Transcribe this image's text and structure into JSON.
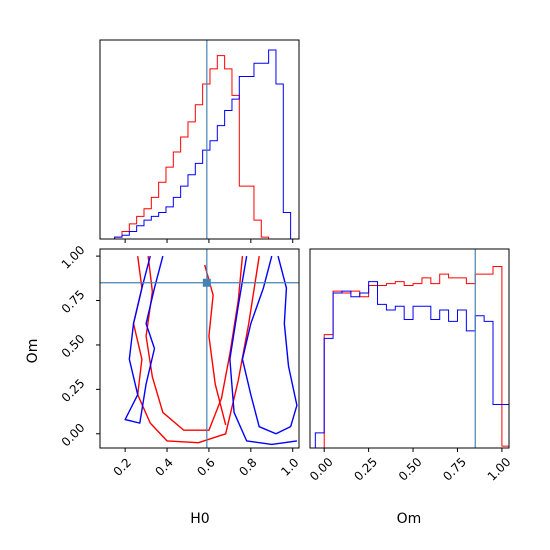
{
  "figure": {
    "colors": {
      "series_a": "#ff0000",
      "series_b": "#0000ff",
      "truth": "#4682b4",
      "axes": "#000000"
    }
  },
  "chart_data": [
    {
      "type": "histogram",
      "panel": "H0 marginal",
      "xlim": [
        0.08,
        1.03
      ],
      "ylim": [
        0,
        1.0
      ],
      "grid": false,
      "yticks_visible": false,
      "truth_value": 0.59,
      "bin_edges": [
        0.08,
        0.115,
        0.15,
        0.185,
        0.22,
        0.255,
        0.29,
        0.325,
        0.36,
        0.395,
        0.43,
        0.465,
        0.5,
        0.535,
        0.57,
        0.605,
        0.64,
        0.675,
        0.71,
        0.745,
        0.78,
        0.815,
        0.85,
        0.885,
        0.92,
        0.955,
        0.99,
        1.03
      ],
      "series": [
        {
          "values": [
            0,
            0,
            0.01,
            0.04,
            0.08,
            0.12,
            0.16,
            0.22,
            0.3,
            0.38,
            0.46,
            0.54,
            0.62,
            0.71,
            0.82,
            0.9,
            0.97,
            0.9,
            0.76,
            0.28,
            0.28,
            0.1,
            0.01,
            0,
            0,
            0,
            0
          ]
        },
        {
          "values": [
            0,
            0,
            0.01,
            0.02,
            0.04,
            0.07,
            0.1,
            0.12,
            0.14,
            0.17,
            0.22,
            0.28,
            0.34,
            0.4,
            0.47,
            0.52,
            0.6,
            0.68,
            0.74,
            0.86,
            0.86,
            0.93,
            0.93,
            1.0,
            0.82,
            0.14,
            0
          ]
        }
      ]
    },
    {
      "type": "contour",
      "panel": "H0 vs Om joint",
      "xlabel": "H0",
      "ylabel": "Om",
      "xlim": [
        0.08,
        1.03
      ],
      "ylim": [
        -0.08,
        1.04
      ],
      "xticks": [
        "0.2",
        "0.4",
        "0.6",
        "0.8",
        "1.0"
      ],
      "yticks": [
        "0.00",
        "0.25",
        "0.50",
        "0.75",
        "1.00"
      ],
      "grid": false,
      "truth_point": [
        0.59,
        0.85
      ],
      "series": [
        {
          "contours": [
            [
              [
                0.26,
                1.0
              ],
              [
                0.28,
                0.82
              ],
              [
                0.24,
                0.62
              ],
              [
                0.28,
                0.42
              ],
              [
                0.26,
                0.22
              ],
              [
                0.32,
                0.06
              ],
              [
                0.4,
                -0.04
              ],
              [
                0.55,
                -0.05
              ],
              [
                0.68,
                0.0
              ],
              [
                0.74,
                0.3
              ],
              [
                0.79,
                0.62
              ],
              [
                0.84,
                1.0
              ]
            ],
            [
              [
                0.31,
                1.0
              ],
              [
                0.33,
                0.8
              ],
              [
                0.3,
                0.55
              ],
              [
                0.33,
                0.32
              ],
              [
                0.38,
                0.12
              ],
              [
                0.48,
                0.02
              ],
              [
                0.6,
                0.02
              ],
              [
                0.66,
                0.2
              ],
              [
                0.7,
                0.45
              ],
              [
                0.74,
                0.75
              ],
              [
                0.76,
                1.0
              ]
            ],
            [
              [
                0.58,
                0.95
              ],
              [
                0.62,
                0.78
              ],
              [
                0.6,
                0.55
              ],
              [
                0.63,
                0.28
              ],
              [
                0.68,
                0.05
              ]
            ]
          ]
        },
        {
          "contours": [
            [
              [
                0.32,
                1.0
              ],
              [
                0.28,
                0.82
              ],
              [
                0.24,
                0.62
              ],
              [
                0.22,
                0.42
              ],
              [
                0.26,
                0.22
              ],
              [
                0.2,
                0.08
              ],
              [
                0.27,
                0.06
              ],
              [
                0.3,
                0.28
              ],
              [
                0.34,
                0.48
              ],
              [
                0.3,
                0.62
              ],
              [
                0.34,
                0.82
              ],
              [
                0.38,
                1.0
              ]
            ],
            [
              [
                0.9,
                1.0
              ],
              [
                0.86,
                0.82
              ],
              [
                0.8,
                0.62
              ],
              [
                0.76,
                0.42
              ],
              [
                0.8,
                0.22
              ],
              [
                0.84,
                0.04
              ],
              [
                0.92,
                0.0
              ],
              [
                0.99,
                0.04
              ],
              [
                1.02,
                0.16
              ],
              [
                0.98,
                0.38
              ],
              [
                0.96,
                0.62
              ],
              [
                0.97,
                0.82
              ],
              [
                0.93,
                1.0
              ]
            ],
            [
              [
                0.78,
                1.0
              ],
              [
                0.74,
                0.72
              ],
              [
                0.7,
                0.42
              ],
              [
                0.72,
                0.12
              ],
              [
                0.78,
                -0.04
              ],
              [
                0.9,
                -0.06
              ],
              [
                1.02,
                -0.04
              ]
            ]
          ]
        }
      ]
    },
    {
      "type": "histogram",
      "panel": "Om marginal",
      "xlabel": "Om",
      "xlim": [
        -0.08,
        1.04
      ],
      "ylim": [
        0,
        1.0
      ],
      "xticks": [
        "0.00",
        "0.25",
        "0.50",
        "0.75",
        "1.00"
      ],
      "grid": false,
      "yticks_visible": false,
      "truth_value": 0.85,
      "bin_edges": [
        -0.05,
        0.0,
        0.05,
        0.1,
        0.15,
        0.2,
        0.25,
        0.3,
        0.35,
        0.4,
        0.45,
        0.5,
        0.55,
        0.6,
        0.65,
        0.7,
        0.75,
        0.8,
        0.85,
        0.9,
        0.95,
        1.0,
        1.04
      ],
      "series": [
        {
          "values": [
            0,
            0.6,
            0.83,
            0.82,
            0.83,
            0.8,
            0.86,
            0.86,
            0.87,
            0.88,
            0.86,
            0.87,
            0.9,
            0.87,
            0.92,
            0.9,
            0.9,
            0.87,
            0.92,
            0.92,
            0.96,
            0.01
          ]
        },
        {
          "values": [
            0.08,
            0.58,
            0.82,
            0.83,
            0.8,
            0.82,
            0.88,
            0.76,
            0.73,
            0.75,
            0.68,
            0.75,
            0.75,
            0.68,
            0.73,
            0.67,
            0.73,
            0.62,
            0.7,
            0.67,
            0.23,
            0.23
          ]
        }
      ]
    }
  ]
}
